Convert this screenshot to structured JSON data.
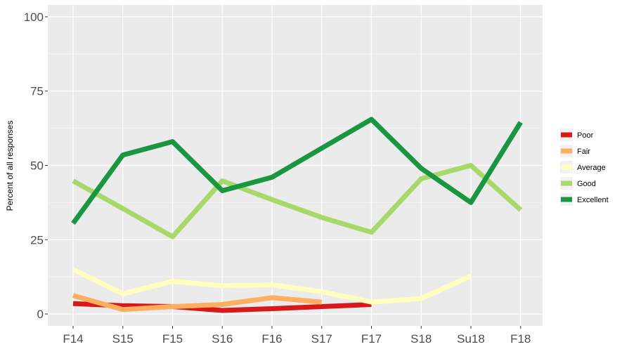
{
  "chart_data": {
    "type": "line",
    "title": "",
    "xlabel": "",
    "ylabel": "Percent of all responses",
    "categories": [
      "F14",
      "S15",
      "F15",
      "S16",
      "F16",
      "S17",
      "F17",
      "S18",
      "Su18",
      "F18"
    ],
    "ylim": [
      -4,
      104
    ],
    "yticks": [
      0,
      25,
      50,
      75,
      100
    ],
    "grid": true,
    "legend_position": "right",
    "series": [
      {
        "name": "Poor",
        "color": "#d7191c",
        "values": [
          3.5,
          2.8,
          2.5,
          1.2,
          1.8,
          2.5,
          3.2,
          null,
          null,
          null
        ]
      },
      {
        "name": "Fair",
        "color": "#fdae61",
        "values": [
          6.2,
          1.5,
          2.5,
          3.2,
          5.5,
          4.0,
          null,
          null,
          null,
          null
        ]
      },
      {
        "name": "Average",
        "color": "#ffffbf",
        "values": [
          15.0,
          6.8,
          11.0,
          9.5,
          9.8,
          7.5,
          4.0,
          5.2,
          12.8,
          null
        ]
      },
      {
        "name": "Good",
        "color": "#a6d96a",
        "values": [
          44.8,
          35.5,
          26.0,
          44.8,
          38.5,
          32.5,
          27.5,
          45.5,
          50.0,
          35.0
        ]
      },
      {
        "name": "Excellent",
        "color": "#1a9641",
        "values": [
          30.5,
          53.5,
          58.0,
          41.5,
          46.0,
          55.8,
          65.5,
          49.0,
          37.5,
          64.5
        ]
      }
    ]
  }
}
